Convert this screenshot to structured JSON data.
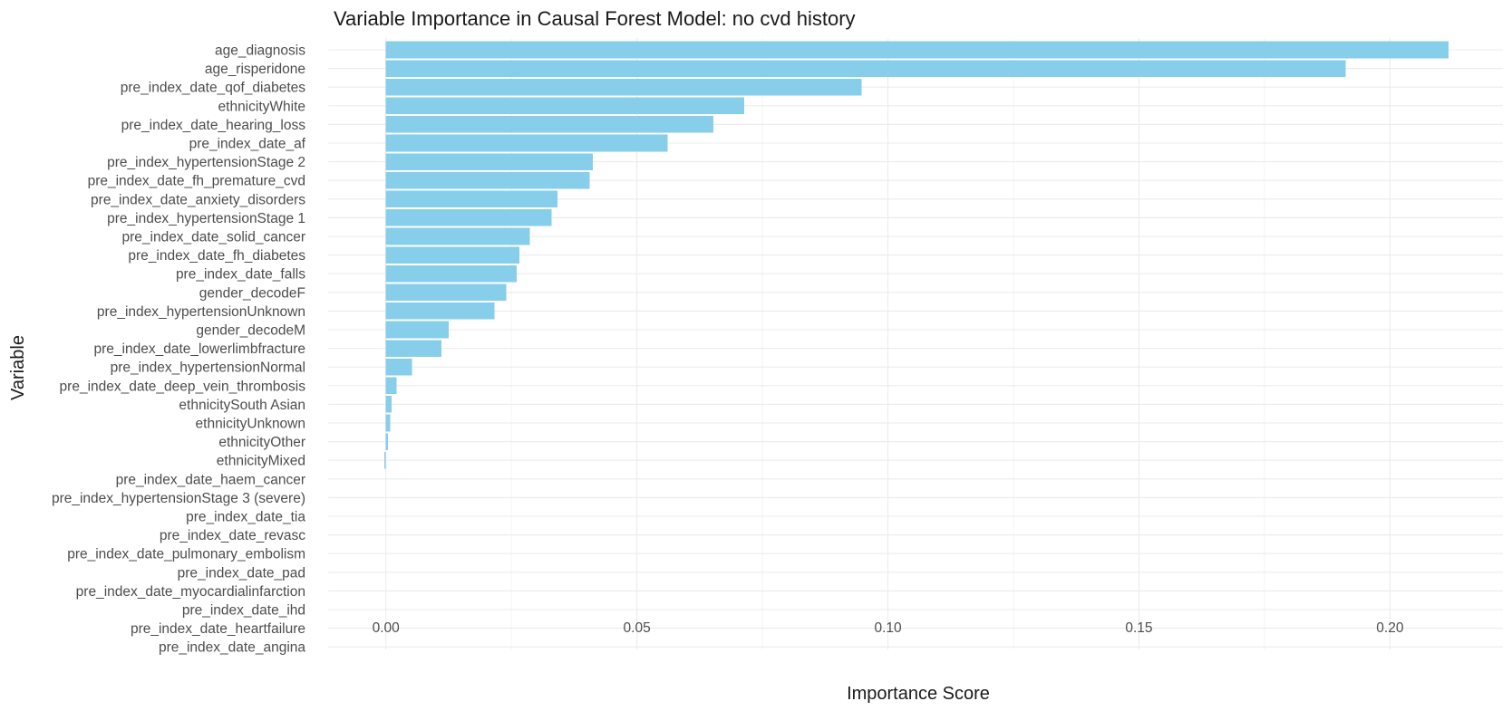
{
  "chart_data": {
    "type": "bar",
    "orientation": "horizontal",
    "title": "Variable Importance in Causal Forest Model: no cvd history",
    "xlabel": "Importance Score",
    "ylabel": "Variable",
    "xlim": [
      -0.0115,
      0.2225
    ],
    "x_ticks": [
      0.0,
      0.05,
      0.1,
      0.15,
      0.2
    ],
    "x_tick_labels": [
      "0.00",
      "0.05",
      "0.10",
      "0.15",
      "0.20"
    ],
    "bar_color": "#87CEEB",
    "grid": true,
    "legend": "none",
    "categories": [
      "age_diagnosis",
      "age_risperidone",
      "pre_index_date_qof_diabetes",
      "ethnicityWhite",
      "pre_index_date_hearing_loss",
      "pre_index_date_af",
      "pre_index_hypertensionStage 2",
      "pre_index_date_fh_premature_cvd",
      "pre_index_date_anxiety_disorders",
      "pre_index_hypertensionStage 1",
      "pre_index_date_solid_cancer",
      "pre_index_date_fh_diabetes",
      "pre_index_date_falls",
      "gender_decodeF",
      "pre_index_hypertensionUnknown",
      "gender_decodeM",
      "pre_index_date_lowerlimbfracture",
      "pre_index_hypertensionNormal",
      "pre_index_date_deep_vein_thrombosis",
      "ethnicitySouth Asian",
      "ethnicityUnknown",
      "ethnicityOther",
      "ethnicityMixed",
      "pre_index_date_haem_cancer",
      "pre_index_hypertensionStage 3 (severe)",
      "pre_index_date_tia",
      "pre_index_date_revasc",
      "pre_index_date_pulmonary_embolism",
      "pre_index_date_pad",
      "pre_index_date_myocardialinfarction",
      "pre_index_date_ihd",
      "pre_index_date_heartfailure",
      "pre_index_date_angina"
    ],
    "values": [
      0.2117,
      0.1912,
      0.0948,
      0.0714,
      0.0652,
      0.0561,
      0.0412,
      0.0406,
      0.0342,
      0.033,
      0.0287,
      0.0266,
      0.0261,
      0.024,
      0.0216,
      0.0125,
      0.0111,
      0.0052,
      0.0021,
      0.0011,
      0.0009,
      0.0004,
      -0.0003,
      0,
      0,
      0,
      0,
      0,
      0,
      0,
      0,
      0,
      0
    ]
  }
}
